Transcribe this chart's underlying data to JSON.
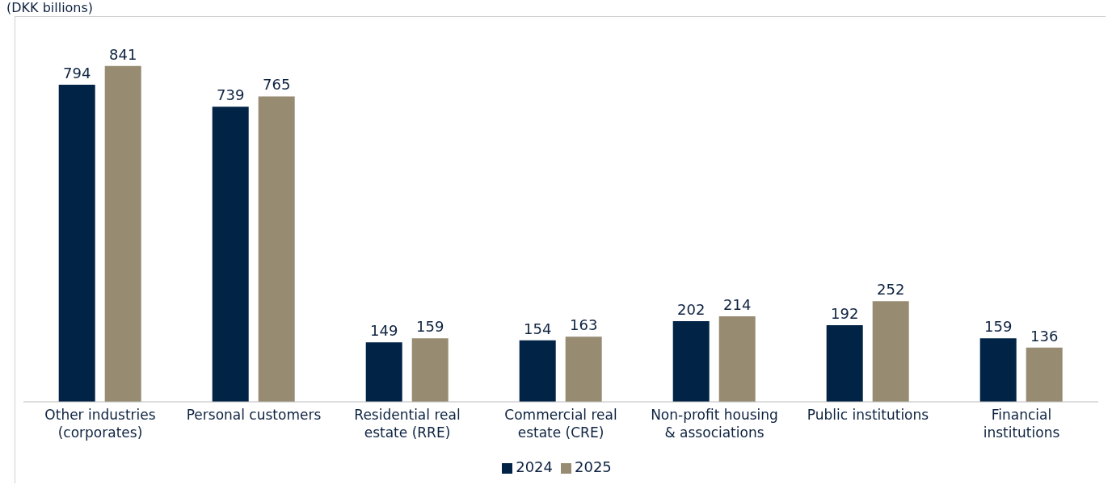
{
  "chart_data": {
    "type": "bar",
    "title": "(DKK billions)",
    "categories": [
      "Other industries (corporates)",
      "Personal customers",
      "Residential real estate (RRE)",
      "Commercial real estate (CRE)",
      "Non-profit housing & associations",
      "Public institutions",
      "Financial institutions"
    ],
    "series": [
      {
        "name": "2024",
        "color": "#002346",
        "values": [
          794,
          739,
          149,
          154,
          202,
          192,
          159
        ]
      },
      {
        "name": "2025",
        "color": "#978b72",
        "values": [
          841,
          765,
          159,
          163,
          214,
          252,
          136
        ]
      }
    ],
    "data_labels": true,
    "legend": "bottom",
    "grid": false
  }
}
